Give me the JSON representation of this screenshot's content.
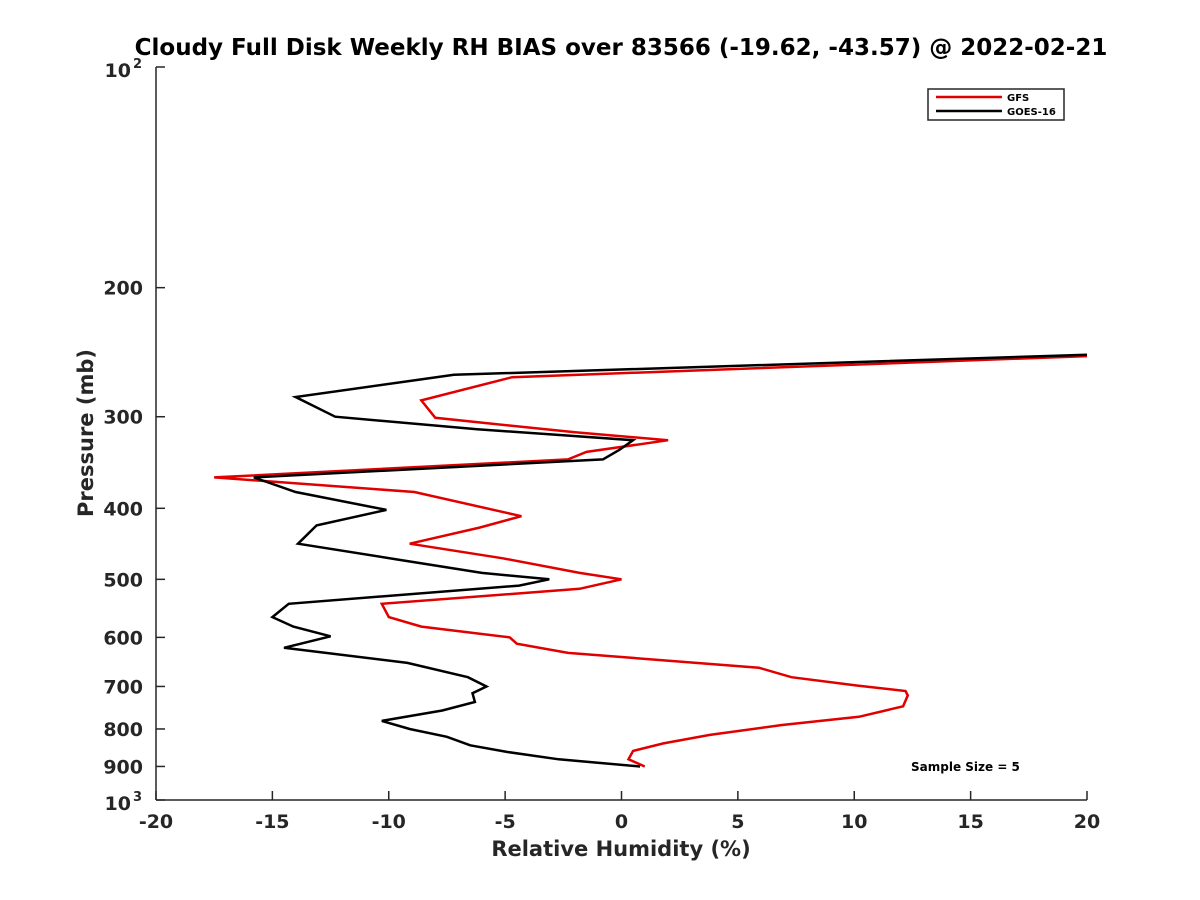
{
  "chart_data": {
    "type": "line",
    "title": "Cloudy Full Disk Weekly RH BIAS over 83566 (-19.62, -43.57) @ 2022-02-21",
    "xlabel": "Relative Humidity (%)",
    "ylabel": "Pressure (mb)",
    "xlim": [
      -20,
      20
    ],
    "ylim": [
      100,
      1000
    ],
    "y_scale": "log",
    "y_reversed": true,
    "grid": false,
    "x_ticks": [
      -20,
      -15,
      -10,
      -5,
      0,
      5,
      10,
      15,
      20
    ],
    "y_ticks": [
      {
        "value": 100,
        "base": "10",
        "exp": "2"
      },
      {
        "value": 200,
        "label": "200"
      },
      {
        "value": 300,
        "label": "300"
      },
      {
        "value": 400,
        "label": "400"
      },
      {
        "value": 500,
        "label": "500"
      },
      {
        "value": 600,
        "label": "600"
      },
      {
        "value": 700,
        "label": "700"
      },
      {
        "value": 800,
        "label": "800"
      },
      {
        "value": 900,
        "label": "900"
      },
      {
        "value": 1000,
        "base": "10",
        "exp": "3"
      }
    ],
    "legend_position": "top-right",
    "annotation": "Sample Size = 5",
    "series": [
      {
        "name": "GFS",
        "color": "#e00000",
        "points": [
          [
            20,
            248
          ],
          [
            -4.7,
            265
          ],
          [
            -8.6,
            285
          ],
          [
            -8.0,
            301
          ],
          [
            -2.0,
            315
          ],
          [
            2.0,
            323
          ],
          [
            -1.5,
            335
          ],
          [
            -2.3,
            343
          ],
          [
            -17.5,
            363
          ],
          [
            -8.9,
            380
          ],
          [
            -4.3,
            410
          ],
          [
            -6.1,
            425
          ],
          [
            -9.1,
            447
          ],
          [
            -5.1,
            468
          ],
          [
            -1.8,
            490
          ],
          [
            0.0,
            500
          ],
          [
            -1.8,
            515
          ],
          [
            -10.3,
            540
          ],
          [
            -10.0,
            563
          ],
          [
            -8.6,
            580
          ],
          [
            -4.8,
            600
          ],
          [
            -4.5,
            612
          ],
          [
            -2.3,
            630
          ],
          [
            5.9,
            660
          ],
          [
            7.3,
            680
          ],
          [
            10.1,
            698
          ],
          [
            12.2,
            710
          ],
          [
            12.3,
            720
          ],
          [
            12.1,
            745
          ],
          [
            10.2,
            770
          ],
          [
            6.9,
            790
          ],
          [
            3.8,
            815
          ],
          [
            1.8,
            837
          ],
          [
            0.5,
            857
          ],
          [
            0.3,
            880
          ],
          [
            1.0,
            900
          ]
        ]
      },
      {
        "name": "GOES-16",
        "color": "#000000",
        "points": [
          [
            20,
            247
          ],
          [
            -7.2,
            263
          ],
          [
            -14.0,
            282
          ],
          [
            -12.3,
            300
          ],
          [
            -6.2,
            312
          ],
          [
            -2.5,
            318
          ],
          [
            0.5,
            323
          ],
          [
            -0.1,
            333
          ],
          [
            -0.8,
            343
          ],
          [
            -15.8,
            363
          ],
          [
            -14.0,
            380
          ],
          [
            -10.1,
            402
          ],
          [
            -13.1,
            422
          ],
          [
            -13.9,
            447
          ],
          [
            -9.6,
            470
          ],
          [
            -6.0,
            490
          ],
          [
            -3.1,
            500
          ],
          [
            -4.4,
            510
          ],
          [
            -14.3,
            540
          ],
          [
            -15.0,
            563
          ],
          [
            -14.1,
            580
          ],
          [
            -12.5,
            598
          ],
          [
            -14.5,
            620
          ],
          [
            -9.2,
            650
          ],
          [
            -6.6,
            680
          ],
          [
            -5.8,
            700
          ],
          [
            -6.4,
            715
          ],
          [
            -6.3,
            735
          ],
          [
            -7.7,
            755
          ],
          [
            -10.3,
            780
          ],
          [
            -9.1,
            800
          ],
          [
            -7.5,
            820
          ],
          [
            -6.5,
            842
          ],
          [
            -4.9,
            860
          ],
          [
            -2.7,
            880
          ],
          [
            0.8,
            900
          ]
        ]
      }
    ]
  }
}
